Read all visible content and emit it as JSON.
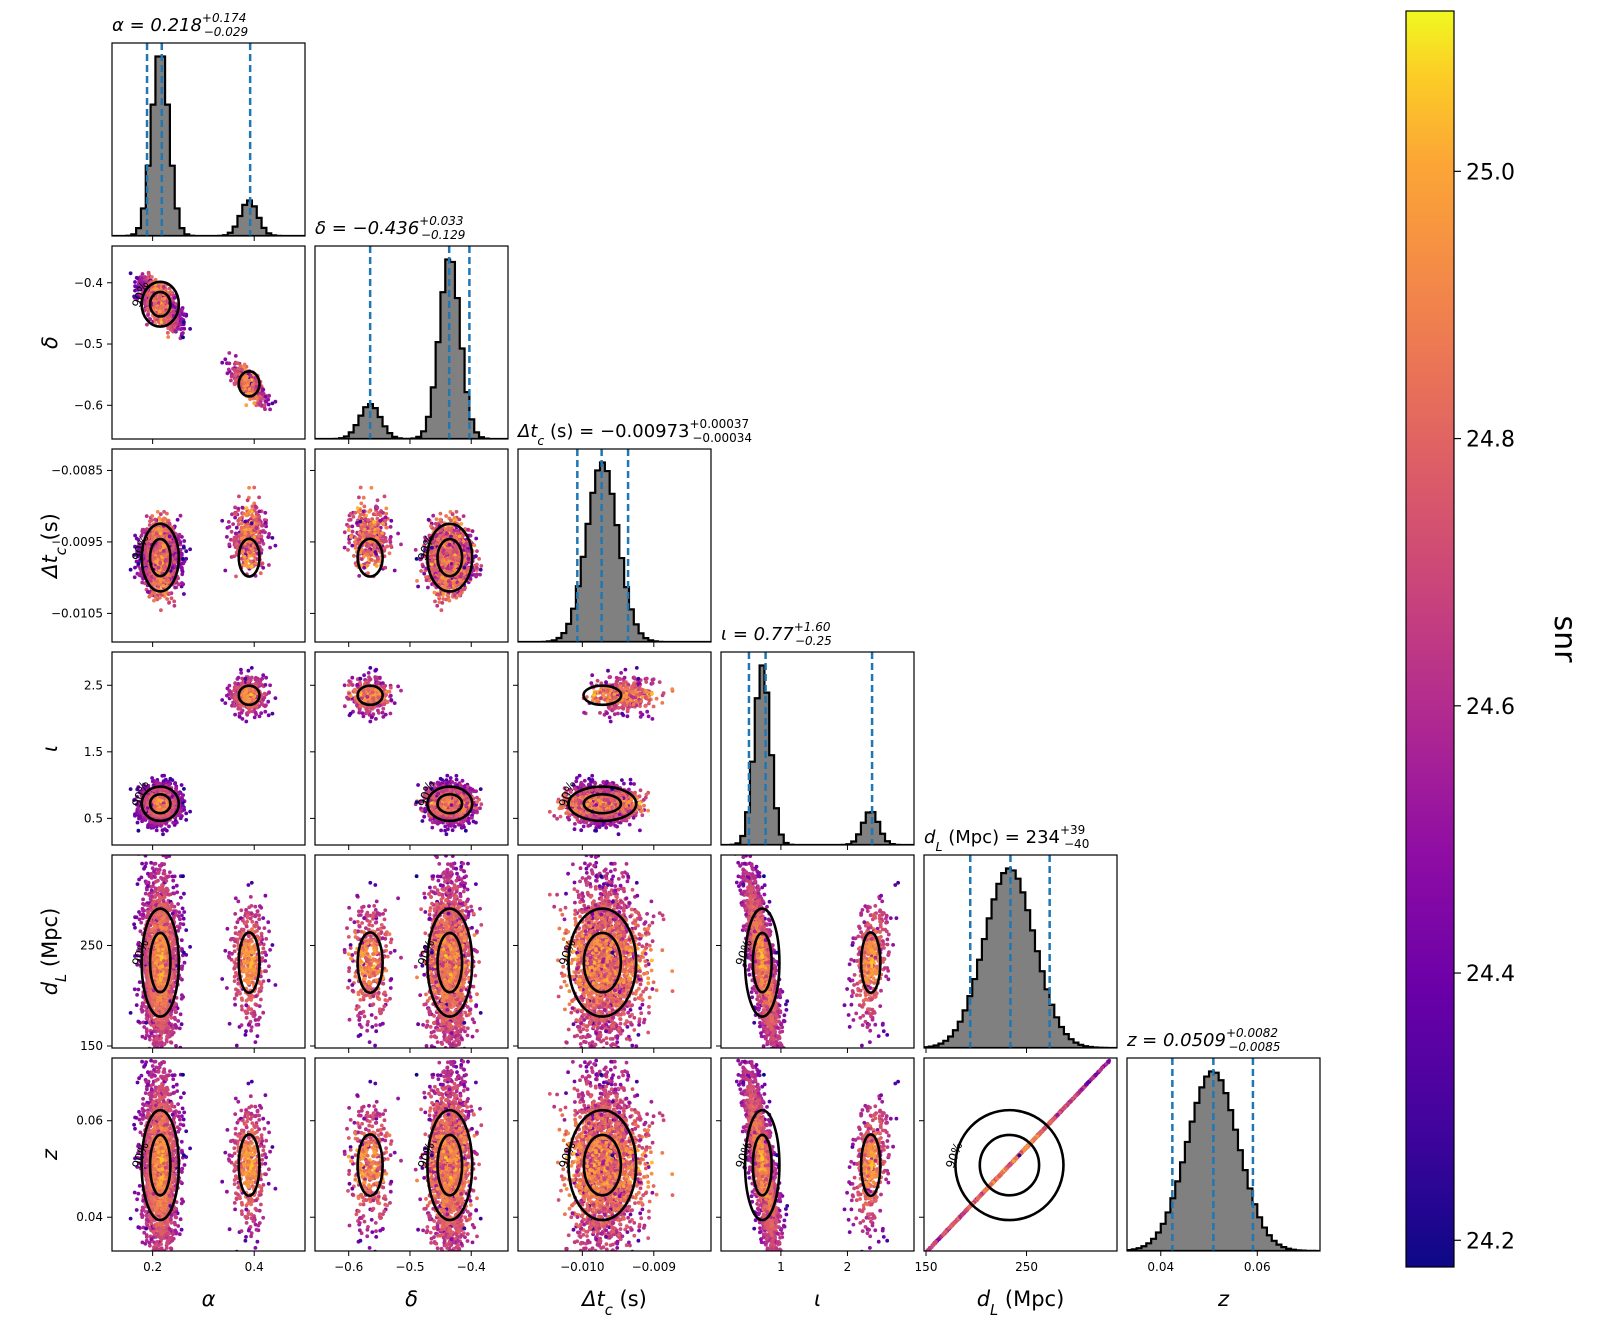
{
  "chart_data": {
    "type": "scatter",
    "subtype": "corner-plot",
    "colormap": "plasma",
    "colors": {
      "histogram_fill": "#808080",
      "histogram_edge": "#000000",
      "quantile_line": "#1f77b4",
      "contour": "#000000",
      "point_low": "#0d0887",
      "point_mid": "#cc4778",
      "point_high": "#f0f921"
    },
    "parameters": [
      {
        "key": "alpha",
        "label": "α",
        "title_lhs": "α = 0.218",
        "title_plus": "+0.174",
        "title_minus": "−0.029",
        "median": 0.218,
        "lo": 0.189,
        "hi": 0.392,
        "range": [
          0.12,
          0.5
        ],
        "ticks": [
          0.2,
          0.4
        ],
        "tick_labels": [
          "0.2",
          "0.4"
        ],
        "modes": [
          {
            "c": 0.215,
            "s": 0.017,
            "w": 0.84
          },
          {
            "c": 0.39,
            "s": 0.017,
            "w": 0.16
          }
        ]
      },
      {
        "key": "delta",
        "label": "δ",
        "title_lhs": "δ = −0.436",
        "title_plus": "+0.033",
        "title_minus": "−0.129",
        "median": -0.436,
        "lo": -0.565,
        "hi": -0.403,
        "range": [
          -0.655,
          -0.34
        ],
        "ticks": [
          -0.6,
          -0.5,
          -0.4
        ],
        "tick_labels": [
          "−0.6",
          "−0.5",
          "−0.4"
        ],
        "modes": [
          {
            "c": -0.435,
            "s": 0.017,
            "w": 0.84
          },
          {
            "c": -0.565,
            "s": 0.017,
            "w": 0.16
          }
        ]
      },
      {
        "key": "dtc",
        "label": "Δtc (s)",
        "title_lhs": "Δtc (s) = −0.00973",
        "title_plus": "+0.00037",
        "title_minus": "−0.00034",
        "median": -0.00973,
        "lo": -0.01007,
        "hi": -0.00936,
        "range": [
          -0.0109,
          -0.0082
        ],
        "ticks": [
          -0.0105,
          -0.0095,
          -0.0085
        ],
        "tick_labels": [
          "−0.0105",
          "−0.0095",
          "−0.0085"
        ],
        "ticks_x": [
          -0.01,
          -0.009
        ],
        "tick_labels_x": [
          "−0.010",
          "−0.009"
        ],
        "modes": [
          {
            "c": -0.00972,
            "s": 0.00022,
            "w": 1.0
          }
        ]
      },
      {
        "key": "iota",
        "label": "ι",
        "title_lhs": "ι = 0.77",
        "title_plus": "+1.60",
        "title_minus": "−0.25",
        "median": 0.77,
        "lo": 0.52,
        "hi": 2.37,
        "range": [
          0.1,
          3.0
        ],
        "ticks": [
          0.5,
          1.5,
          2.5
        ],
        "tick_labels": [
          "0.5",
          "1.5",
          "2.5"
        ],
        "ticks_x": [
          1,
          2
        ],
        "tick_labels_x": [
          "1",
          "2"
        ],
        "modes": [
          {
            "c": 0.72,
            "s": 0.12,
            "w": 0.84
          },
          {
            "c": 2.35,
            "s": 0.12,
            "w": 0.16
          }
        ]
      },
      {
        "key": "dl",
        "label": "dL (Mpc)",
        "title_lhs": "dL (Mpc) = 234",
        "title_plus": "+39",
        "title_minus": "−40",
        "median": 234,
        "lo": 194,
        "hi": 273,
        "range": [
          148,
          340
        ],
        "ticks": [
          150,
          250
        ],
        "tick_labels": [
          "150",
          "250"
        ],
        "modes": [
          {
            "c": 233,
            "s": 25,
            "w": 1.0
          }
        ]
      },
      {
        "key": "z",
        "label": "z",
        "title_lhs": "z = 0.0509",
        "title_plus": "+0.0082",
        "title_minus": "−0.0085",
        "median": 0.0509,
        "lo": 0.0424,
        "hi": 0.0591,
        "range": [
          0.033,
          0.073
        ],
        "ticks": [
          0.04,
          0.06
        ],
        "tick_labels": [
          "0.04",
          "0.06"
        ],
        "modes": [
          {
            "c": 0.0508,
            "s": 0.0053,
            "w": 1.0
          }
        ]
      }
    ],
    "contour_labels": {
      "inner": "50%",
      "outer": "90%"
    },
    "colorbar": {
      "label": "snr",
      "range": [
        24.18,
        25.12
      ],
      "ticks": [
        24.2,
        24.4,
        24.6,
        24.8,
        25.0
      ],
      "tick_labels": [
        "24.2",
        "24.4",
        "24.6",
        "24.8",
        "25.0"
      ]
    }
  }
}
